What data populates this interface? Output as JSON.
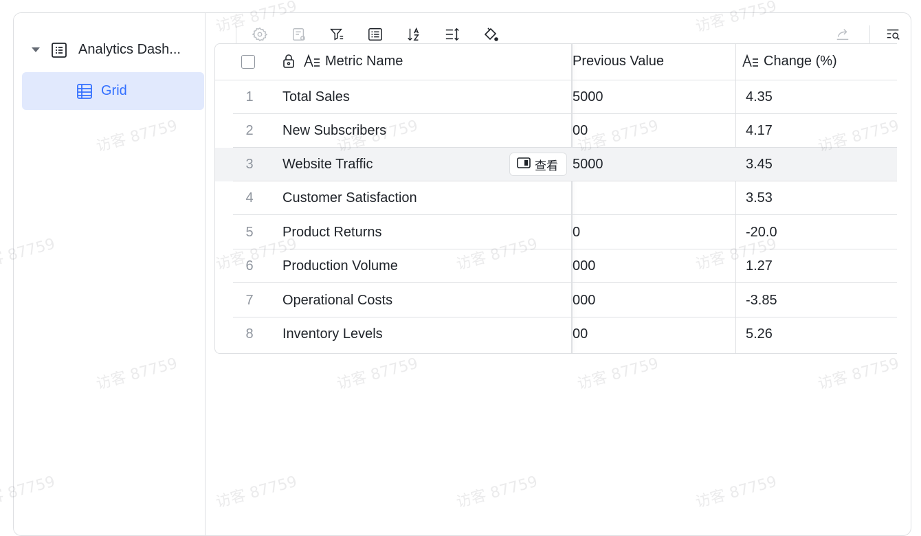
{
  "sidebar": {
    "root_label": "Analytics Dash...",
    "child_label": "Grid"
  },
  "table": {
    "columns": {
      "name": "Metric Name",
      "previous": "Previous Value",
      "change": "Change (%)"
    },
    "rows": [
      {
        "num": "1",
        "name": "Total Sales",
        "prev": "5000",
        "change": "4.35"
      },
      {
        "num": "2",
        "name": "New Subscribers",
        "prev": "00",
        "change": "4.17"
      },
      {
        "num": "3",
        "name": "Website Traffic",
        "prev": "5000",
        "change": "3.45"
      },
      {
        "num": "4",
        "name": "Customer Satisfaction",
        "prev": "",
        "change": "3.53"
      },
      {
        "num": "5",
        "name": "Product Returns",
        "prev": "0",
        "change": "-20.0"
      },
      {
        "num": "6",
        "name": "Production Volume",
        "prev": "000",
        "change": "1.27"
      },
      {
        "num": "7",
        "name": "Operational Costs",
        "prev": "000",
        "change": "-3.85"
      },
      {
        "num": "8",
        "name": "Inventory Levels",
        "prev": "00",
        "change": "5.26"
      }
    ],
    "view_button_label": "查看"
  },
  "watermark": "访客 87759",
  "colors": {
    "accent": "#3370ff",
    "selected_bg": "#e1e9fd",
    "border": "#dee0e3",
    "hover_row": "#f2f3f5"
  }
}
